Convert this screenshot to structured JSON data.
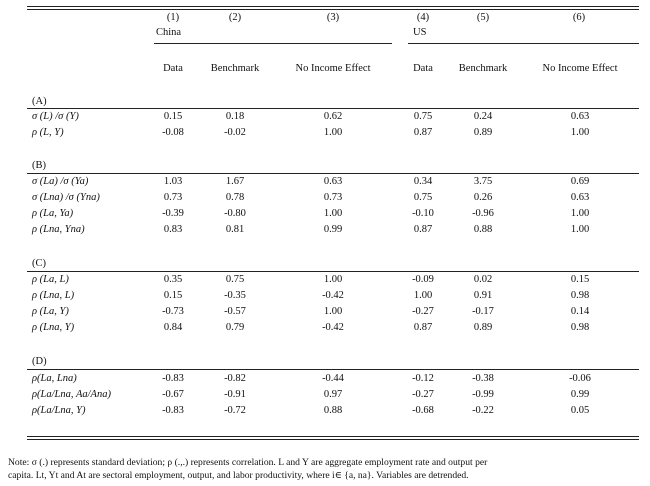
{
  "header": {
    "col_numbers": [
      "(1)",
      "(2)",
      "(3)",
      "(4)",
      "(5)",
      "(6)"
    ],
    "group_china": "China",
    "group_us": "US",
    "col_labels": [
      "Data",
      "Benchmark",
      "No Income Effect",
      "Data",
      "Benchmark",
      "No Income Effect"
    ]
  },
  "panels": [
    {
      "title": "(A)",
      "rows": [
        {
          "label": "σ (L) /σ (Y)",
          "values": [
            "0.15",
            "0.18",
            "0.62",
            "0.75",
            "0.24",
            "0.63"
          ]
        },
        {
          "label": "ρ (L, Y)",
          "values": [
            "-0.08",
            "-0.02",
            "1.00",
            "0.87",
            "0.89",
            "1.00"
          ]
        }
      ]
    },
    {
      "title": "(B)",
      "rows": [
        {
          "label": "σ (La) /σ (Ya)",
          "values": [
            "1.03",
            "1.67",
            "0.63",
            "0.34",
            "3.75",
            "0.69"
          ]
        },
        {
          "label": "σ (Lna) /σ (Yna)",
          "values": [
            "0.73",
            "0.78",
            "0.73",
            "0.75",
            "0.26",
            "0.63"
          ]
        },
        {
          "label": "ρ (La, Ya)",
          "values": [
            "-0.39",
            "-0.80",
            "1.00",
            "-0.10",
            "-0.96",
            "1.00"
          ]
        },
        {
          "label": "ρ (Lna, Yna)",
          "values": [
            "0.83",
            "0.81",
            "0.99",
            "0.87",
            "0.88",
            "1.00"
          ]
        }
      ]
    },
    {
      "title": "(C)",
      "rows": [
        {
          "label": "ρ (La, L)",
          "values": [
            "0.35",
            "0.75",
            "1.00",
            "-0.09",
            "0.02",
            "0.15"
          ]
        },
        {
          "label": "ρ (Lna, L)",
          "values": [
            "0.15",
            "-0.35",
            "-0.42",
            "1.00",
            "0.91",
            "0.98"
          ]
        },
        {
          "label": "ρ (La, Y)",
          "values": [
            "-0.73",
            "-0.57",
            "1.00",
            "-0.27",
            "-0.17",
            "0.14"
          ]
        },
        {
          "label": "ρ (Lna, Y)",
          "values": [
            "0.84",
            "0.79",
            "-0.42",
            "0.87",
            "0.89",
            "0.98"
          ]
        }
      ]
    },
    {
      "title": "(D)",
      "rows": [
        {
          "label": "ρ(La, Lna)",
          "values": [
            "-0.83",
            "-0.82",
            "-0.44",
            "-0.12",
            "-0.38",
            "-0.06"
          ]
        },
        {
          "label": "ρ(La/Lna, Aa/Ana)",
          "values": [
            "-0.67",
            "-0.91",
            "0.97",
            "-0.27",
            "-0.99",
            "0.99"
          ]
        },
        {
          "label": "ρ(La/Lna, Y)",
          "values": [
            "-0.83",
            "-0.72",
            "0.88",
            "-0.68",
            "-0.22",
            "0.05"
          ]
        }
      ]
    }
  ],
  "note_line1": "Note: σ (.) represents standard deviation; ρ (.,.) represents correlation. L and Y are aggregate employment rate and output per",
  "note_line2": "capita. Lt, Yt and At are sectoral employment, output, and labor productivity, where i∈ {a, na}. Variables are detrended."
}
